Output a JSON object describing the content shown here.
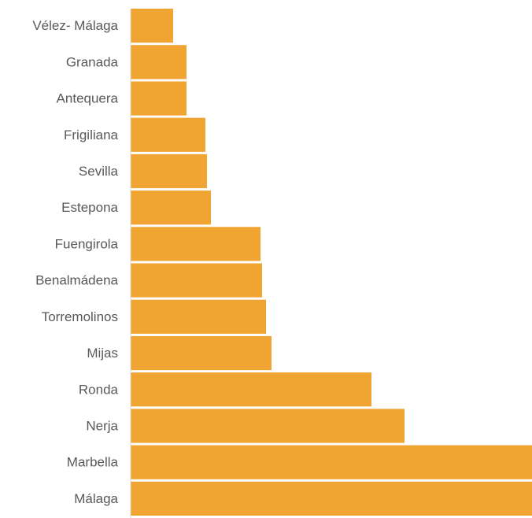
{
  "chart_data": {
    "type": "bar",
    "orientation": "horizontal",
    "title": "",
    "xlabel": "",
    "ylabel": "",
    "categories": [
      "Vélez- Málaga",
      "Granada",
      "Antequera",
      "Frigiliana",
      "Sevilla",
      "Estepona",
      "Fuengirola",
      "Benalmádena",
      "Torremolinos",
      "Mijas",
      "Ronda",
      "Nerja",
      "Marbella",
      "Málaga"
    ],
    "values": [
      54,
      71,
      71,
      95,
      97,
      102,
      165,
      167,
      172,
      179,
      306,
      348,
      510,
      510
    ],
    "value_axis_visible": false,
    "category_axis_line": true,
    "grid": false,
    "legend": "none",
    "colors": {
      "bar": "#F0A431",
      "axis_line": "#D9D9D9",
      "label_text": "#595959"
    }
  }
}
